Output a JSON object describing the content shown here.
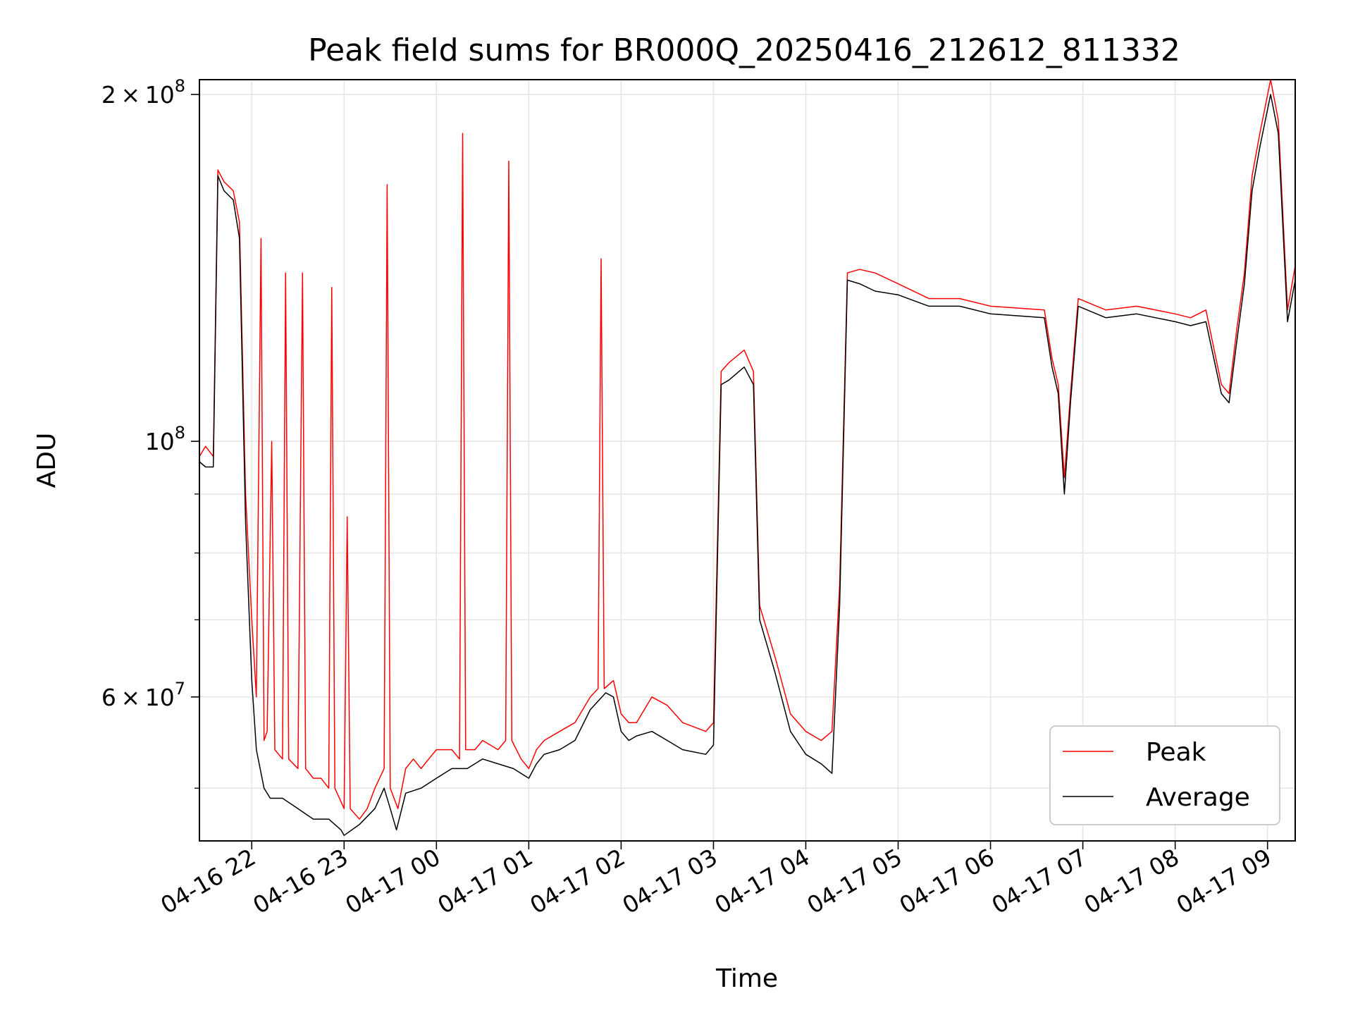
{
  "chart_data": {
    "type": "line",
    "title": "Peak field sums for BR000Q_20250416_212612_811332",
    "xlabel": "Time",
    "ylabel": "ADU",
    "y_scale": "log",
    "ylim": [
      45000000,
      206000000
    ],
    "xlim": [
      "2025-04-16 21:26",
      "2025-04-17 09:18"
    ],
    "grid": true,
    "legend_position": "lower right",
    "x_ticks": [
      {
        "label": "04-16 22",
        "t": "2025-04-16 22:00"
      },
      {
        "label": "04-16 23",
        "t": "2025-04-16 23:00"
      },
      {
        "label": "04-17 00",
        "t": "2025-04-17 00:00"
      },
      {
        "label": "04-17 01",
        "t": "2025-04-17 01:00"
      },
      {
        "label": "04-17 02",
        "t": "2025-04-17 02:00"
      },
      {
        "label": "04-17 03",
        "t": "2025-04-17 03:00"
      },
      {
        "label": "04-17 04",
        "t": "2025-04-17 04:00"
      },
      {
        "label": "04-17 05",
        "t": "2025-04-17 05:00"
      },
      {
        "label": "04-17 06",
        "t": "2025-04-17 06:00"
      },
      {
        "label": "04-17 07",
        "t": "2025-04-17 07:00"
      },
      {
        "label": "04-17 08",
        "t": "2025-04-17 08:00"
      },
      {
        "label": "04-17 09",
        "t": "2025-04-17 09:00"
      }
    ],
    "y_ticks": [
      {
        "value": 200000000,
        "base": "2 × 10",
        "exp": "8"
      },
      {
        "value": 100000000,
        "base": "10",
        "exp": "8"
      },
      {
        "value": 60000000,
        "base": "6 × 10",
        "exp": "7"
      }
    ],
    "y_minor_ticks": [
      50000000,
      70000000,
      80000000,
      90000000
    ],
    "series": [
      {
        "name": "Peak",
        "color": "#ff0000",
        "points": [
          [
            "2025-04-16 21:26",
            97000000
          ],
          [
            "2025-04-16 21:30",
            99000000
          ],
          [
            "2025-04-16 21:35",
            97000000
          ],
          [
            "2025-04-16 21:38",
            172000000
          ],
          [
            "2025-04-16 21:42",
            168000000
          ],
          [
            "2025-04-16 21:48",
            165000000
          ],
          [
            "2025-04-16 21:52",
            155000000
          ],
          [
            "2025-04-16 21:56",
            90000000
          ],
          [
            "2025-04-16 22:00",
            70000000
          ],
          [
            "2025-04-16 22:03",
            60000000
          ],
          [
            "2025-04-16 22:06",
            150000000
          ],
          [
            "2025-04-16 22:08",
            55000000
          ],
          [
            "2025-04-16 22:10",
            56000000
          ],
          [
            "2025-04-16 22:13",
            100000000
          ],
          [
            "2025-04-16 22:15",
            54000000
          ],
          [
            "2025-04-16 22:20",
            53000000
          ],
          [
            "2025-04-16 22:22",
            140000000
          ],
          [
            "2025-04-16 22:24",
            53000000
          ],
          [
            "2025-04-16 22:30",
            52000000
          ],
          [
            "2025-04-16 22:33",
            140000000
          ],
          [
            "2025-04-16 22:35",
            52000000
          ],
          [
            "2025-04-16 22:40",
            51000000
          ],
          [
            "2025-04-16 22:45",
            51000000
          ],
          [
            "2025-04-16 22:50",
            50000000
          ],
          [
            "2025-04-16 22:52",
            136000000
          ],
          [
            "2025-04-16 22:54",
            50000000
          ],
          [
            "2025-04-16 23:00",
            48000000
          ],
          [
            "2025-04-16 23:02",
            86000000
          ],
          [
            "2025-04-16 23:04",
            48000000
          ],
          [
            "2025-04-16 23:10",
            47000000
          ],
          [
            "2025-04-16 23:15",
            48000000
          ],
          [
            "2025-04-16 23:20",
            50000000
          ],
          [
            "2025-04-16 23:26",
            52000000
          ],
          [
            "2025-04-16 23:28",
            167000000
          ],
          [
            "2025-04-16 23:30",
            50000000
          ],
          [
            "2025-04-16 23:35",
            48000000
          ],
          [
            "2025-04-16 23:40",
            52000000
          ],
          [
            "2025-04-16 23:45",
            53000000
          ],
          [
            "2025-04-16 23:50",
            52000000
          ],
          [
            "2025-04-16 23:55",
            53000000
          ],
          [
            "2025-04-17 00:00",
            54000000
          ],
          [
            "2025-04-17 00:10",
            54000000
          ],
          [
            "2025-04-17 00:15",
            53000000
          ],
          [
            "2025-04-17 00:17",
            185000000
          ],
          [
            "2025-04-17 00:19",
            54000000
          ],
          [
            "2025-04-17 00:25",
            54000000
          ],
          [
            "2025-04-17 00:30",
            55000000
          ],
          [
            "2025-04-17 00:40",
            54000000
          ],
          [
            "2025-04-17 00:45",
            55000000
          ],
          [
            "2025-04-17 00:47",
            175000000
          ],
          [
            "2025-04-17 00:49",
            55000000
          ],
          [
            "2025-04-17 00:55",
            53000000
          ],
          [
            "2025-04-17 01:00",
            52000000
          ],
          [
            "2025-04-17 01:05",
            54000000
          ],
          [
            "2025-04-17 01:10",
            55000000
          ],
          [
            "2025-04-17 01:20",
            56000000
          ],
          [
            "2025-04-17 01:30",
            57000000
          ],
          [
            "2025-04-17 01:40",
            60000000
          ],
          [
            "2025-04-17 01:45",
            61000000
          ],
          [
            "2025-04-17 01:47",
            144000000
          ],
          [
            "2025-04-17 01:49",
            61000000
          ],
          [
            "2025-04-17 01:55",
            62000000
          ],
          [
            "2025-04-17 02:00",
            58000000
          ],
          [
            "2025-04-17 02:05",
            57000000
          ],
          [
            "2025-04-17 02:10",
            57000000
          ],
          [
            "2025-04-17 02:20",
            60000000
          ],
          [
            "2025-04-17 02:30",
            59000000
          ],
          [
            "2025-04-17 02:40",
            57000000
          ],
          [
            "2025-04-17 02:55",
            56000000
          ],
          [
            "2025-04-17 03:00",
            57000000
          ],
          [
            "2025-04-17 03:05",
            115000000
          ],
          [
            "2025-04-17 03:10",
            117000000
          ],
          [
            "2025-04-17 03:20",
            120000000
          ],
          [
            "2025-04-17 03:26",
            115000000
          ],
          [
            "2025-04-17 03:30",
            72000000
          ],
          [
            "2025-04-17 03:40",
            65000000
          ],
          [
            "2025-04-17 03:50",
            58000000
          ],
          [
            "2025-04-17 04:00",
            56000000
          ],
          [
            "2025-04-17 04:10",
            55000000
          ],
          [
            "2025-04-17 04:17",
            56000000
          ],
          [
            "2025-04-17 04:22",
            75000000
          ],
          [
            "2025-04-17 04:27",
            140000000
          ],
          [
            "2025-04-17 04:35",
            141000000
          ],
          [
            "2025-04-17 04:45",
            140000000
          ],
          [
            "2025-04-17 05:00",
            137000000
          ],
          [
            "2025-04-17 05:20",
            133000000
          ],
          [
            "2025-04-17 05:40",
            133000000
          ],
          [
            "2025-04-17 06:00",
            131000000
          ],
          [
            "2025-04-17 06:35",
            130000000
          ],
          [
            "2025-04-17 06:40",
            118000000
          ],
          [
            "2025-04-17 06:44",
            112000000
          ],
          [
            "2025-04-17 06:48",
            93000000
          ],
          [
            "2025-04-17 06:52",
            110000000
          ],
          [
            "2025-04-17 06:57",
            133000000
          ],
          [
            "2025-04-17 07:15",
            130000000
          ],
          [
            "2025-04-17 07:35",
            131000000
          ],
          [
            "2025-04-17 08:00",
            129000000
          ],
          [
            "2025-04-17 08:10",
            128000000
          ],
          [
            "2025-04-17 08:20",
            130000000
          ],
          [
            "2025-04-17 08:30",
            112000000
          ],
          [
            "2025-04-17 08:35",
            110000000
          ],
          [
            "2025-04-17 08:40",
            125000000
          ],
          [
            "2025-04-17 08:45",
            140000000
          ],
          [
            "2025-04-17 08:50",
            170000000
          ],
          [
            "2025-04-17 08:55",
            185000000
          ],
          [
            "2025-04-17 09:02",
            206000000
          ],
          [
            "2025-04-17 09:07",
            190000000
          ],
          [
            "2025-04-17 09:13",
            130000000
          ],
          [
            "2025-04-17 09:18",
            142000000
          ]
        ]
      },
      {
        "name": "Average",
        "color": "#000000",
        "points": [
          [
            "2025-04-16 21:26",
            96000000
          ],
          [
            "2025-04-16 21:30",
            95000000
          ],
          [
            "2025-04-16 21:35",
            95000000
          ],
          [
            "2025-04-16 21:38",
            170000000
          ],
          [
            "2025-04-16 21:42",
            165000000
          ],
          [
            "2025-04-16 21:48",
            162000000
          ],
          [
            "2025-04-16 21:52",
            150000000
          ],
          [
            "2025-04-16 21:56",
            85000000
          ],
          [
            "2025-04-16 22:00",
            62000000
          ],
          [
            "2025-04-16 22:03",
            54000000
          ],
          [
            "2025-04-16 22:08",
            50000000
          ],
          [
            "2025-04-16 22:12",
            49000000
          ],
          [
            "2025-04-16 22:20",
            49000000
          ],
          [
            "2025-04-16 22:30",
            48000000
          ],
          [
            "2025-04-16 22:40",
            47000000
          ],
          [
            "2025-04-16 22:50",
            47000000
          ],
          [
            "2025-04-16 22:58",
            46000000
          ],
          [
            "2025-04-16 23:00",
            45500000
          ],
          [
            "2025-04-16 23:10",
            46500000
          ],
          [
            "2025-04-16 23:20",
            48000000
          ],
          [
            "2025-04-16 23:26",
            50000000
          ],
          [
            "2025-04-16 23:30",
            48000000
          ],
          [
            "2025-04-16 23:34",
            46000000
          ],
          [
            "2025-04-16 23:40",
            49500000
          ],
          [
            "2025-04-16 23:50",
            50000000
          ],
          [
            "2025-04-17 00:00",
            51000000
          ],
          [
            "2025-04-17 00:10",
            52000000
          ],
          [
            "2025-04-17 00:20",
            52000000
          ],
          [
            "2025-04-17 00:30",
            53000000
          ],
          [
            "2025-04-17 00:40",
            52500000
          ],
          [
            "2025-04-17 00:50",
            52000000
          ],
          [
            "2025-04-17 01:00",
            51000000
          ],
          [
            "2025-04-17 01:05",
            52500000
          ],
          [
            "2025-04-17 01:10",
            53500000
          ],
          [
            "2025-04-17 01:20",
            54000000
          ],
          [
            "2025-04-17 01:30",
            55000000
          ],
          [
            "2025-04-17 01:40",
            58500000
          ],
          [
            "2025-04-17 01:50",
            60500000
          ],
          [
            "2025-04-17 01:55",
            60000000
          ],
          [
            "2025-04-17 02:00",
            56000000
          ],
          [
            "2025-04-17 02:05",
            55000000
          ],
          [
            "2025-04-17 02:10",
            55500000
          ],
          [
            "2025-04-17 02:20",
            56000000
          ],
          [
            "2025-04-17 02:30",
            55000000
          ],
          [
            "2025-04-17 02:40",
            54000000
          ],
          [
            "2025-04-17 02:55",
            53500000
          ],
          [
            "2025-04-17 03:00",
            54500000
          ],
          [
            "2025-04-17 03:05",
            112000000
          ],
          [
            "2025-04-17 03:10",
            113000000
          ],
          [
            "2025-04-17 03:20",
            116000000
          ],
          [
            "2025-04-17 03:26",
            112000000
          ],
          [
            "2025-04-17 03:30",
            70000000
          ],
          [
            "2025-04-17 03:40",
            63000000
          ],
          [
            "2025-04-17 03:50",
            56000000
          ],
          [
            "2025-04-17 04:00",
            53500000
          ],
          [
            "2025-04-17 04:10",
            52500000
          ],
          [
            "2025-04-17 04:17",
            51500000
          ],
          [
            "2025-04-17 04:22",
            72000000
          ],
          [
            "2025-04-17 04:27",
            138000000
          ],
          [
            "2025-04-17 04:35",
            137000000
          ],
          [
            "2025-04-17 04:45",
            135000000
          ],
          [
            "2025-04-17 05:00",
            134000000
          ],
          [
            "2025-04-17 05:20",
            131000000
          ],
          [
            "2025-04-17 05:40",
            131000000
          ],
          [
            "2025-04-17 06:00",
            129000000
          ],
          [
            "2025-04-17 06:35",
            128000000
          ],
          [
            "2025-04-17 06:40",
            116000000
          ],
          [
            "2025-04-17 06:44",
            110000000
          ],
          [
            "2025-04-17 06:48",
            90000000
          ],
          [
            "2025-04-17 06:52",
            108000000
          ],
          [
            "2025-04-17 06:57",
            131000000
          ],
          [
            "2025-04-17 07:15",
            128000000
          ],
          [
            "2025-04-17 07:35",
            129000000
          ],
          [
            "2025-04-17 08:00",
            127000000
          ],
          [
            "2025-04-17 08:10",
            126000000
          ],
          [
            "2025-04-17 08:20",
            127000000
          ],
          [
            "2025-04-17 08:30",
            110000000
          ],
          [
            "2025-04-17 08:35",
            108000000
          ],
          [
            "2025-04-17 08:40",
            122000000
          ],
          [
            "2025-04-17 08:45",
            137000000
          ],
          [
            "2025-04-17 08:50",
            165000000
          ],
          [
            "2025-04-17 08:55",
            180000000
          ],
          [
            "2025-04-17 09:02",
            200000000
          ],
          [
            "2025-04-17 09:07",
            185000000
          ],
          [
            "2025-04-17 09:13",
            127000000
          ],
          [
            "2025-04-17 09:18",
            138000000
          ]
        ]
      }
    ]
  }
}
